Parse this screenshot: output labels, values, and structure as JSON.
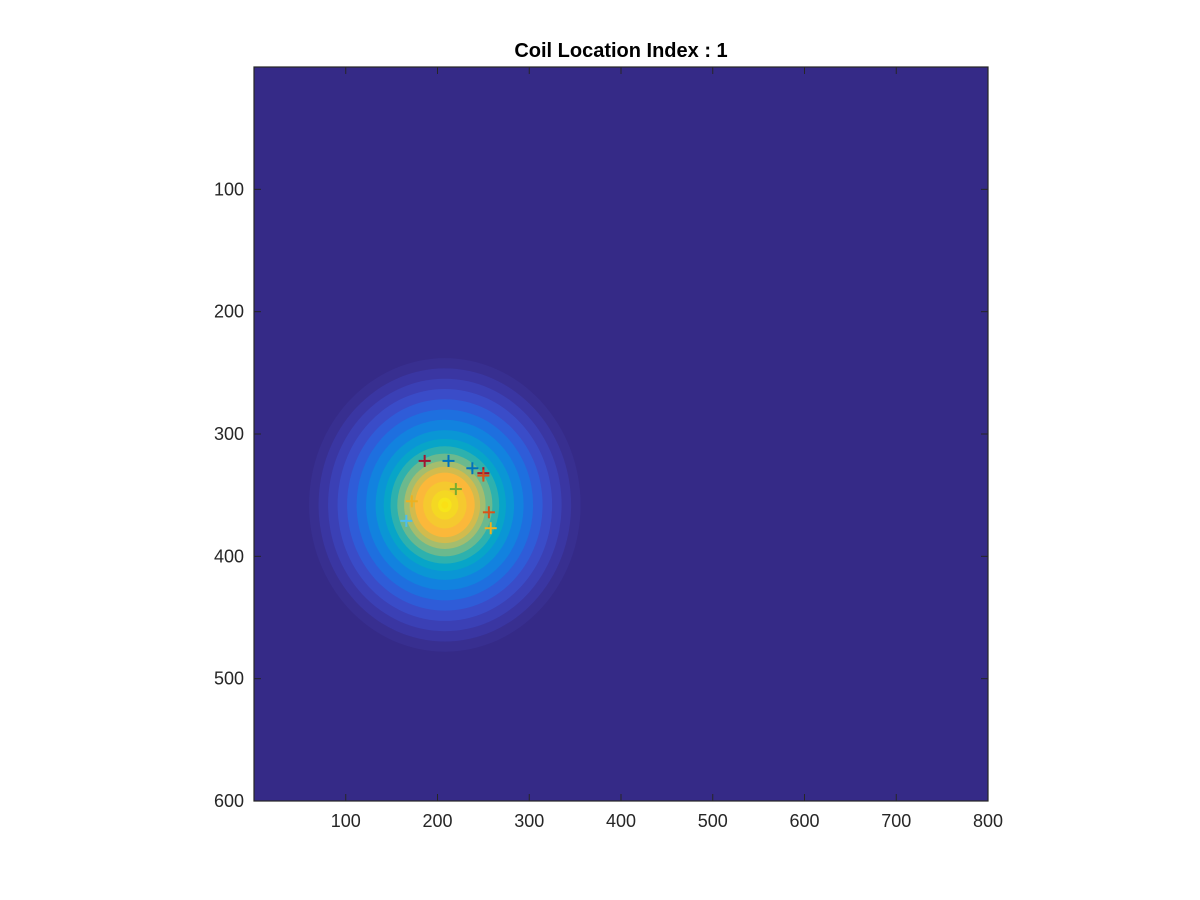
{
  "chart_data": {
    "type": "heatmap",
    "title": "Coil Location Index : 1",
    "xlabel": "",
    "ylabel": "",
    "xlim": [
      0,
      800
    ],
    "ylim": [
      0,
      600
    ],
    "y_reversed": true,
    "colormap": "parula",
    "background_color": "#352A87",
    "grid": false,
    "legend": "none",
    "x_ticks": [
      100,
      200,
      300,
      400,
      500,
      600,
      700,
      800
    ],
    "y_ticks": [
      100,
      200,
      300,
      400,
      500,
      600
    ],
    "x_tick_labels": [
      "100",
      "200",
      "300",
      "400",
      "500",
      "600",
      "700",
      "800"
    ],
    "y_tick_labels": [
      "100",
      "200",
      "300",
      "400",
      "500",
      "600"
    ],
    "field": {
      "shape": "gaussian-blob",
      "center": [
        208,
        358
      ],
      "radius": [
        148,
        120
      ],
      "peak_color": "#FAE015",
      "contour_levels": [
        {
          "r": 1.0,
          "color": "#382F90"
        },
        {
          "r": 0.93,
          "color": "#3A36A2"
        },
        {
          "r": 0.86,
          "color": "#3B40B5"
        },
        {
          "r": 0.79,
          "color": "#3A4CC8"
        },
        {
          "r": 0.72,
          "color": "#2F5CD8"
        },
        {
          "r": 0.65,
          "color": "#1E6FDF"
        },
        {
          "r": 0.58,
          "color": "#1282DF"
        },
        {
          "r": 0.51,
          "color": "#0A96D5"
        },
        {
          "r": 0.45,
          "color": "#07A5C8"
        },
        {
          "r": 0.4,
          "color": "#2DB1AE"
        },
        {
          "r": 0.35,
          "color": "#6BB98E"
        },
        {
          "r": 0.3,
          "color": "#A4BD6E"
        },
        {
          "r": 0.26,
          "color": "#D2BB4D"
        },
        {
          "r": 0.22,
          "color": "#FBB83A"
        },
        {
          "r": 0.16,
          "color": "#F5C92F"
        },
        {
          "r": 0.1,
          "color": "#F4D823"
        },
        {
          "r": 0.05,
          "color": "#F7E51A"
        }
      ]
    },
    "series": [
      {
        "marker": "+",
        "color": "#A2142F",
        "x": [
          186
        ],
        "y": [
          322
        ]
      },
      {
        "marker": "+",
        "color": "#0072BD",
        "x": [
          212
        ],
        "y": [
          322
        ]
      },
      {
        "marker": "+",
        "color": "#0072BD",
        "x": [
          238
        ],
        "y": [
          328
        ]
      },
      {
        "marker": "+",
        "color": "#A2142F",
        "x": [
          250
        ],
        "y": [
          332
        ]
      },
      {
        "marker": "+",
        "color": "#D95319",
        "x": [
          250
        ],
        "y": [
          334
        ]
      },
      {
        "marker": "+",
        "color": "#77AC30",
        "x": [
          220
        ],
        "y": [
          345
        ]
      },
      {
        "marker": "+",
        "color": "#EDB120",
        "x": [
          172
        ],
        "y": [
          355
        ]
      },
      {
        "marker": "+",
        "color": "#D95319",
        "x": [
          256
        ],
        "y": [
          364
        ]
      },
      {
        "marker": "+",
        "color": "#4DBEEE",
        "x": [
          166
        ],
        "y": [
          371
        ]
      },
      {
        "marker": "+",
        "color": "#EDB120",
        "x": [
          258
        ],
        "y": [
          377
        ]
      }
    ]
  }
}
